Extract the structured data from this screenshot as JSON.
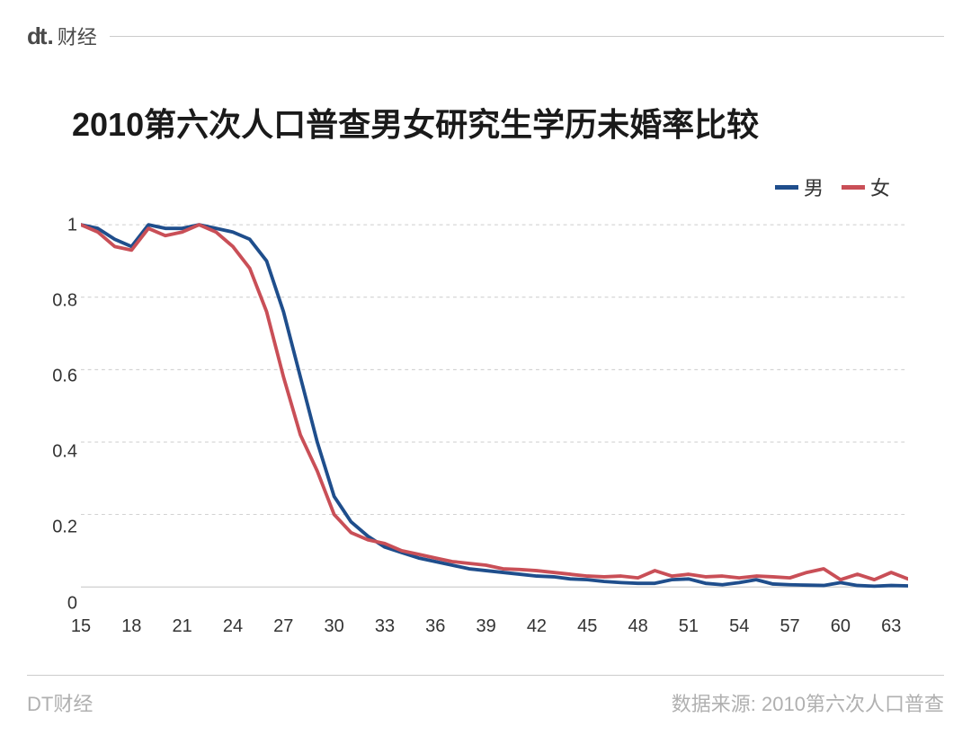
{
  "header": {
    "logo_mark": "dt",
    "logo_dot": ".",
    "logo_text": "财经"
  },
  "chart": {
    "type": "line",
    "title": "2010第六次人口普查男女研究生学历未婚率比较",
    "title_fontsize": 36,
    "title_fontweight": 700,
    "background_color": "#ffffff",
    "grid_color": "#cccccc",
    "grid_dash": "4 4",
    "axis_color": "#bbbbbb",
    "axis_fontsize": 20,
    "line_width": 4,
    "xlim": [
      15,
      64
    ],
    "ylim": [
      -0.02,
      1.05
    ],
    "x_ticks": [
      15,
      18,
      21,
      24,
      27,
      30,
      33,
      36,
      39,
      42,
      45,
      48,
      51,
      54,
      57,
      60,
      63
    ],
    "y_ticks": [
      0,
      0.2,
      0.4,
      0.6,
      0.8,
      1
    ],
    "y_tick_labels": [
      "0",
      "0.2",
      "0.4",
      "0.6",
      "0.8",
      "1"
    ],
    "legend_position": "top-right",
    "legend_fontsize": 22,
    "series": [
      {
        "name": "男",
        "color": "#1f4e8c",
        "x": [
          15,
          16,
          17,
          18,
          19,
          20,
          21,
          22,
          23,
          24,
          25,
          26,
          27,
          28,
          29,
          30,
          31,
          32,
          33,
          34,
          35,
          36,
          37,
          38,
          39,
          40,
          41,
          42,
          43,
          44,
          45,
          46,
          47,
          48,
          49,
          50,
          51,
          52,
          53,
          54,
          55,
          56,
          57,
          58,
          59,
          60,
          61,
          62,
          63,
          64
        ],
        "y": [
          1.0,
          0.99,
          0.96,
          0.94,
          1.0,
          0.99,
          0.99,
          1.0,
          0.99,
          0.98,
          0.96,
          0.9,
          0.76,
          0.58,
          0.4,
          0.25,
          0.18,
          0.14,
          0.11,
          0.095,
          0.08,
          0.07,
          0.06,
          0.05,
          0.045,
          0.04,
          0.035,
          0.03,
          0.028,
          0.022,
          0.02,
          0.015,
          0.012,
          0.01,
          0.01,
          0.02,
          0.022,
          0.01,
          0.006,
          0.012,
          0.02,
          0.008,
          0.006,
          0.005,
          0.004,
          0.012,
          0.004,
          0.002,
          0.004,
          0.003
        ]
      },
      {
        "name": "女",
        "color": "#c94f57",
        "x": [
          15,
          16,
          17,
          18,
          19,
          20,
          21,
          22,
          23,
          24,
          25,
          26,
          27,
          28,
          29,
          30,
          31,
          32,
          33,
          34,
          35,
          36,
          37,
          38,
          39,
          40,
          41,
          42,
          43,
          44,
          45,
          46,
          47,
          48,
          49,
          50,
          51,
          52,
          53,
          54,
          55,
          56,
          57,
          58,
          59,
          60,
          61,
          62,
          63,
          64
        ],
        "y": [
          1.0,
          0.98,
          0.94,
          0.93,
          0.99,
          0.97,
          0.98,
          1.0,
          0.98,
          0.94,
          0.88,
          0.76,
          0.58,
          0.42,
          0.32,
          0.2,
          0.15,
          0.13,
          0.12,
          0.1,
          0.09,
          0.08,
          0.07,
          0.065,
          0.06,
          0.05,
          0.048,
          0.045,
          0.04,
          0.035,
          0.03,
          0.028,
          0.03,
          0.025,
          0.045,
          0.03,
          0.035,
          0.028,
          0.03,
          0.025,
          0.03,
          0.028,
          0.025,
          0.04,
          0.05,
          0.02,
          0.035,
          0.02,
          0.04,
          0.022
        ]
      }
    ]
  },
  "footer": {
    "brand": "DT财经",
    "source_label": "数据来源:",
    "source_value": "2010第六次人口普查"
  }
}
